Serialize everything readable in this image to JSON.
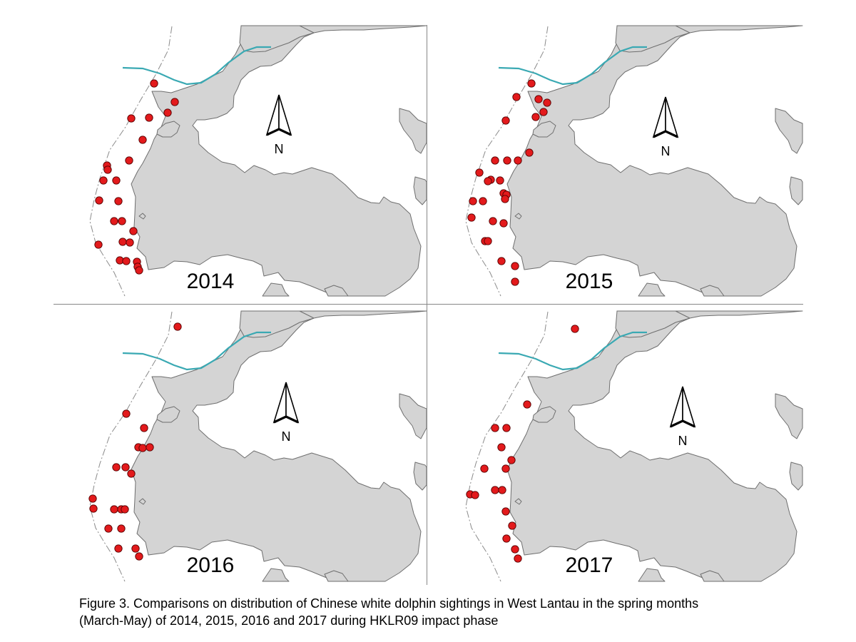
{
  "colors": {
    "land": "#d4d4d4",
    "coast": "#6e6e6e",
    "water": "#ffffff",
    "channel": "#3aa9b3",
    "sighting": "#e31a1c",
    "sighting_outline": "#550000",
    "divider": "#888888",
    "boundary": "#8a8a8a"
  },
  "icons": {
    "north_arrow": "north-arrow-icon",
    "sighting": "dolphin-sighting-dot"
  },
  "panels": [
    {
      "year": "2014",
      "north_label": "N",
      "sightings": [
        [
          216,
          117
        ],
        [
          245,
          143
        ],
        [
          235,
          158
        ],
        [
          184,
          166
        ],
        [
          209,
          165
        ],
        [
          200,
          196
        ],
        [
          181,
          225
        ],
        [
          150,
          232
        ],
        [
          151,
          238
        ],
        [
          145,
          253
        ],
        [
          163,
          253
        ],
        [
          139,
          281
        ],
        [
          166,
          282
        ],
        [
          160,
          310
        ],
        [
          171,
          310
        ],
        [
          187,
          324
        ],
        [
          138,
          343
        ],
        [
          172,
          339
        ],
        [
          182,
          340
        ],
        [
          168,
          365
        ],
        [
          177,
          366
        ],
        [
          192,
          367
        ],
        [
          193,
          374
        ],
        [
          195,
          379
        ]
      ]
    },
    {
      "year": "2015",
      "north_label": "N",
      "sightings": [
        [
          745,
          117
        ],
        [
          724,
          136
        ],
        [
          755,
          139
        ],
        [
          767,
          144
        ],
        [
          751,
          164
        ],
        [
          762,
          157
        ],
        [
          709,
          169
        ],
        [
          742,
          214
        ],
        [
          694,
          225
        ],
        [
          711,
          225
        ],
        [
          726,
          225
        ],
        [
          672,
          242
        ],
        [
          688,
          252
        ],
        [
          684,
          254
        ],
        [
          701,
          253
        ],
        [
          706,
          271
        ],
        [
          710,
          273
        ],
        [
          708,
          279
        ],
        [
          663,
          282
        ],
        [
          677,
          282
        ],
        [
          661,
          305
        ],
        [
          691,
          310
        ],
        [
          706,
          313
        ],
        [
          680,
          338
        ],
        [
          684,
          338
        ],
        [
          703,
          366
        ],
        [
          722,
          373
        ],
        [
          722,
          395
        ]
      ]
    },
    {
      "year": "2016",
      "north_label": "N",
      "sightings": [
        [
          249,
          458
        ],
        [
          177,
          580
        ],
        [
          202,
          600
        ],
        [
          194,
          627
        ],
        [
          200,
          628
        ],
        [
          210,
          627
        ],
        [
          163,
          655
        ],
        [
          176,
          655
        ],
        [
          184,
          664
        ],
        [
          130,
          699
        ],
        [
          131,
          713
        ],
        [
          160,
          714
        ],
        [
          170,
          714
        ],
        [
          175,
          714
        ],
        [
          152,
          741
        ],
        [
          170,
          741
        ],
        [
          166,
          769
        ],
        [
          190,
          769
        ],
        [
          195,
          780
        ]
      ]
    },
    {
      "year": "2017",
      "north_label": "N",
      "sightings": [
        [
          806,
          461
        ],
        [
          739,
          567
        ],
        [
          694,
          600
        ],
        [
          710,
          600
        ],
        [
          703,
          627
        ],
        [
          717,
          645
        ],
        [
          679,
          657
        ],
        [
          709,
          657
        ],
        [
          659,
          693
        ],
        [
          666,
          694
        ],
        [
          694,
          687
        ],
        [
          704,
          687
        ],
        [
          709,
          717
        ],
        [
          718,
          737
        ],
        [
          710,
          755
        ],
        [
          722,
          770
        ],
        [
          726,
          783
        ]
      ]
    }
  ],
  "caption": {
    "line1": "Figure 3.  Comparisons on distribution of Chinese white dolphin sightings in West Lantau in the spring months",
    "line2": "(March-May) of 2014, 2015, 2016 and 2017 during HKLR09 impact phase"
  }
}
